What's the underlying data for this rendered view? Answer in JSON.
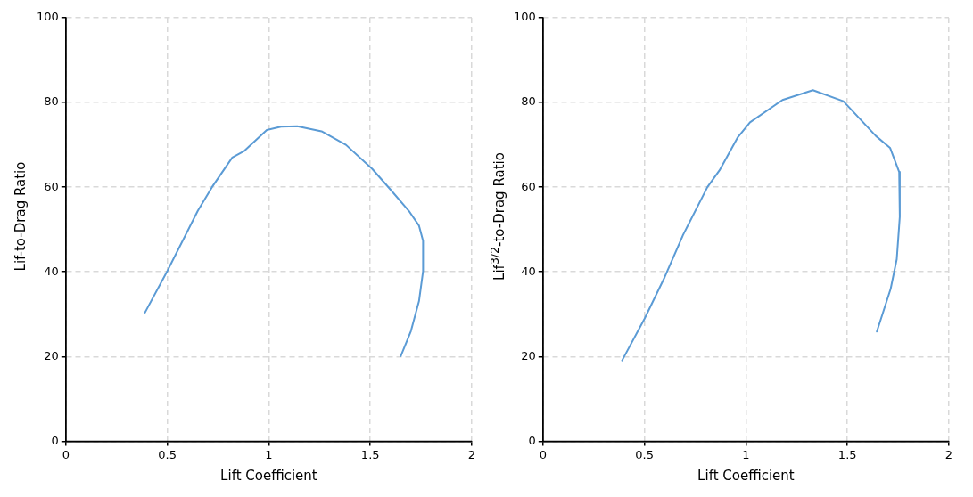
{
  "chart_data": [
    {
      "type": "line",
      "xlabel": "Lift Coefficient",
      "ylabel": "Lif-to-Drag Ratio",
      "xlim": [
        0,
        2
      ],
      "xticks": [
        0,
        0.5,
        1,
        1.5,
        2
      ],
      "ylim": [
        0,
        100
      ],
      "yticks": [
        0,
        20,
        40,
        60,
        80,
        100
      ],
      "grid": true,
      "marker": "none",
      "line_style": "solid",
      "series": [
        {
          "color": "#5b9bd5",
          "x": [
            0.39,
            0.5,
            0.65,
            0.72,
            0.82,
            0.88,
            0.99,
            1.06,
            1.14,
            1.26,
            1.38,
            1.51,
            1.6,
            1.69,
            1.74,
            1.76,
            1.76,
            1.74,
            1.7,
            1.65
          ],
          "values": [
            30.4,
            40.2,
            54.4,
            60,
            67,
            68.6,
            73.5,
            74.3,
            74.4,
            73.2,
            70,
            64.3,
            59.4,
            54.4,
            50.9,
            47.3,
            40.2,
            33.1,
            26,
            20.1
          ]
        }
      ]
    },
    {
      "type": "line",
      "xlabel": "Lift Coefficient",
      "ylabel": "Lif$^{3/2}$-to-Drag Ratio",
      "xlim": [
        0,
        2
      ],
      "xticks": [
        0,
        0.5,
        1,
        1.5,
        2
      ],
      "ylim": [
        0,
        100
      ],
      "yticks": [
        0,
        20,
        40,
        60,
        80,
        100
      ],
      "grid": true,
      "marker": "none",
      "line_style": "solid",
      "series": [
        {
          "color": "#5b9bd5",
          "x": [
            0.39,
            0.5,
            0.6,
            0.69,
            0.81,
            0.87,
            0.96,
            1.02,
            1.18,
            1.33,
            1.48,
            1.64,
            1.71,
            1.755,
            1.758,
            1.743,
            1.713,
            1.645
          ],
          "values": [
            19.1,
            28.9,
            38.8,
            48.7,
            60,
            64,
            71.8,
            75.3,
            80.6,
            82.9,
            80.3,
            72.1,
            69.3,
            63.6,
            53,
            43,
            36,
            25.9
          ]
        }
      ]
    }
  ]
}
